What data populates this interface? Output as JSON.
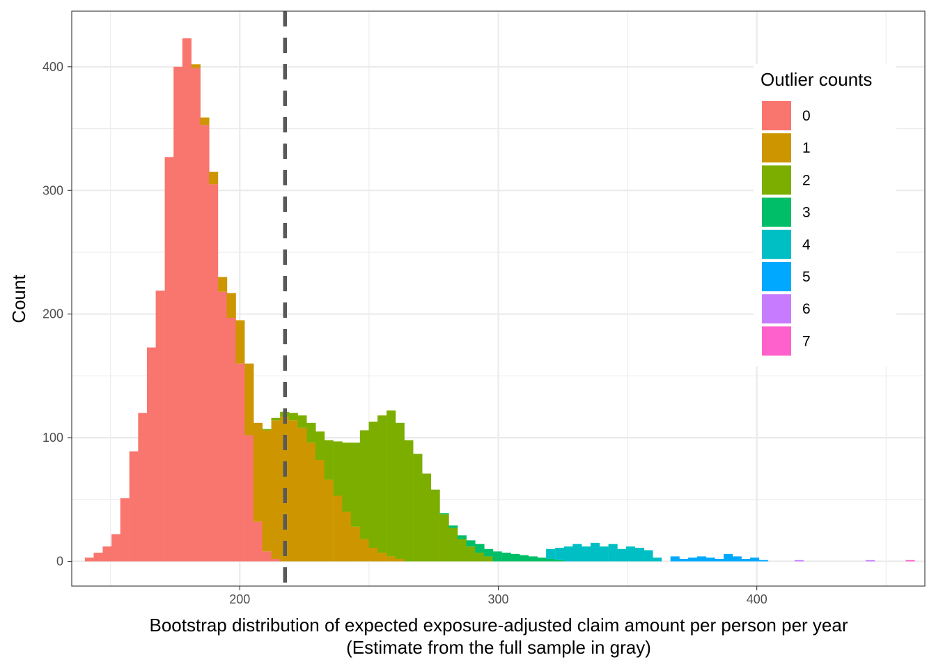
{
  "chart_data": {
    "type": "histogram",
    "xlabel": "Bootstrap distribution of expected exposure-adjusted claim amount per person per year",
    "xlabel_line2": "(Estimate from the full sample in gray)",
    "ylabel": "Count",
    "xlim": [
      135,
      465
    ],
    "ylim": [
      -20,
      445
    ],
    "x_ticks": [
      200,
      300,
      400
    ],
    "y_ticks": [
      0,
      100,
      200,
      300,
      400
    ],
    "grid": true,
    "reference_line": {
      "x": 217.5,
      "style": "dashed",
      "color": "#595959"
    },
    "bin_width": 3.43,
    "legend": {
      "title": "Outlier counts",
      "position": "right",
      "entries": [
        {
          "label": "0",
          "color": "#F8766D"
        },
        {
          "label": "1",
          "color": "#CD9600"
        },
        {
          "label": "2",
          "color": "#7CAE00"
        },
        {
          "label": "3",
          "color": "#00BE67"
        },
        {
          "label": "4",
          "color": "#00BFC4"
        },
        {
          "label": "5",
          "color": "#00A9FF"
        },
        {
          "label": "6",
          "color": "#C77CFF"
        },
        {
          "label": "7",
          "color": "#FF61CC"
        }
      ]
    },
    "series": [
      {
        "name": "0",
        "color": "#F8766D",
        "bins": [
          [
            141.8,
            3
          ],
          [
            145.2,
            7
          ],
          [
            148.7,
            12
          ],
          [
            152.1,
            22
          ],
          [
            155.5,
            51
          ],
          [
            159.0,
            89
          ],
          [
            162.4,
            120
          ],
          [
            165.8,
            173
          ],
          [
            169.2,
            219
          ],
          [
            172.7,
            327
          ],
          [
            176.1,
            400
          ],
          [
            179.5,
            423
          ],
          [
            183.0,
            399
          ],
          [
            186.4,
            353
          ],
          [
            189.8,
            305
          ],
          [
            193.3,
            218
          ],
          [
            196.7,
            197
          ],
          [
            200.1,
            160
          ],
          [
            203.6,
            102
          ],
          [
            207.0,
            32
          ],
          [
            210.4,
            8
          ],
          [
            213.9,
            2
          ]
        ]
      },
      {
        "name": "1",
        "color": "#CD9600",
        "bins": [
          [
            183.0,
            3
          ],
          [
            186.4,
            6
          ],
          [
            189.8,
            10
          ],
          [
            193.3,
            12
          ],
          [
            196.7,
            20
          ],
          [
            200.1,
            35
          ],
          [
            203.6,
            58
          ],
          [
            207.0,
            80
          ],
          [
            210.4,
            98
          ],
          [
            213.9,
            112
          ],
          [
            217.3,
            117
          ],
          [
            220.7,
            114
          ],
          [
            224.1,
            108
          ],
          [
            227.6,
            96
          ],
          [
            231.0,
            82
          ],
          [
            234.4,
            66
          ],
          [
            237.9,
            53
          ],
          [
            241.3,
            40
          ],
          [
            244.7,
            28
          ],
          [
            248.2,
            18
          ],
          [
            251.6,
            11
          ],
          [
            255.0,
            7
          ],
          [
            258.5,
            4
          ],
          [
            261.9,
            2
          ]
        ]
      },
      {
        "name": "2",
        "color": "#7CAE00",
        "bins": [
          [
            210.4,
            1
          ],
          [
            213.9,
            2
          ],
          [
            217.3,
            4
          ],
          [
            220.7,
            6
          ],
          [
            224.1,
            10
          ],
          [
            227.6,
            16
          ],
          [
            231.0,
            23
          ],
          [
            234.4,
            32
          ],
          [
            237.9,
            44
          ],
          [
            241.3,
            56
          ],
          [
            244.7,
            68
          ],
          [
            248.2,
            88
          ],
          [
            251.6,
            102
          ],
          [
            255.0,
            111
          ],
          [
            258.5,
            118
          ],
          [
            261.9,
            110
          ],
          [
            265.3,
            98
          ],
          [
            268.8,
            87
          ],
          [
            272.2,
            71
          ],
          [
            275.6,
            58
          ],
          [
            279.1,
            38
          ],
          [
            282.5,
            27
          ],
          [
            285.9,
            18
          ],
          [
            289.3,
            12
          ],
          [
            292.8,
            7
          ],
          [
            296.2,
            4
          ]
        ]
      },
      {
        "name": "3",
        "color": "#00BE67",
        "bins": [
          [
            279.1,
            1
          ],
          [
            282.5,
            2
          ],
          [
            285.9,
            3
          ],
          [
            289.3,
            5
          ],
          [
            292.8,
            7
          ],
          [
            296.2,
            6
          ],
          [
            299.6,
            8
          ],
          [
            303.1,
            7
          ],
          [
            306.5,
            6
          ],
          [
            309.9,
            5
          ],
          [
            313.4,
            4
          ],
          [
            316.8,
            3
          ],
          [
            320.2,
            2
          ],
          [
            323.7,
            1
          ]
        ]
      },
      {
        "name": "4",
        "color": "#00BFC4",
        "bins": [
          [
            320.2,
            8
          ],
          [
            323.7,
            10
          ],
          [
            327.1,
            12
          ],
          [
            330.5,
            14
          ],
          [
            334.0,
            12
          ],
          [
            337.4,
            15
          ],
          [
            340.8,
            12
          ],
          [
            344.3,
            14
          ],
          [
            347.7,
            10
          ],
          [
            351.1,
            12
          ],
          [
            354.6,
            11
          ],
          [
            358.0,
            9
          ],
          [
            361.4,
            3
          ]
        ]
      },
      {
        "name": "5",
        "color": "#00A9FF",
        "bins": [
          [
            368.3,
            4
          ],
          [
            371.7,
            2
          ],
          [
            375.1,
            3
          ],
          [
            378.6,
            4
          ],
          [
            382.0,
            3
          ],
          [
            385.4,
            2
          ],
          [
            388.9,
            6
          ],
          [
            392.3,
            4
          ],
          [
            395.7,
            2
          ],
          [
            399.1,
            3
          ],
          [
            402.6,
            1
          ]
        ]
      },
      {
        "name": "6",
        "color": "#C77CFF",
        "bins": [
          [
            416.3,
            1
          ],
          [
            443.8,
            1
          ]
        ]
      },
      {
        "name": "7",
        "color": "#FF61CC",
        "bins": [
          [
            459.3,
            1
          ]
        ]
      }
    ]
  }
}
